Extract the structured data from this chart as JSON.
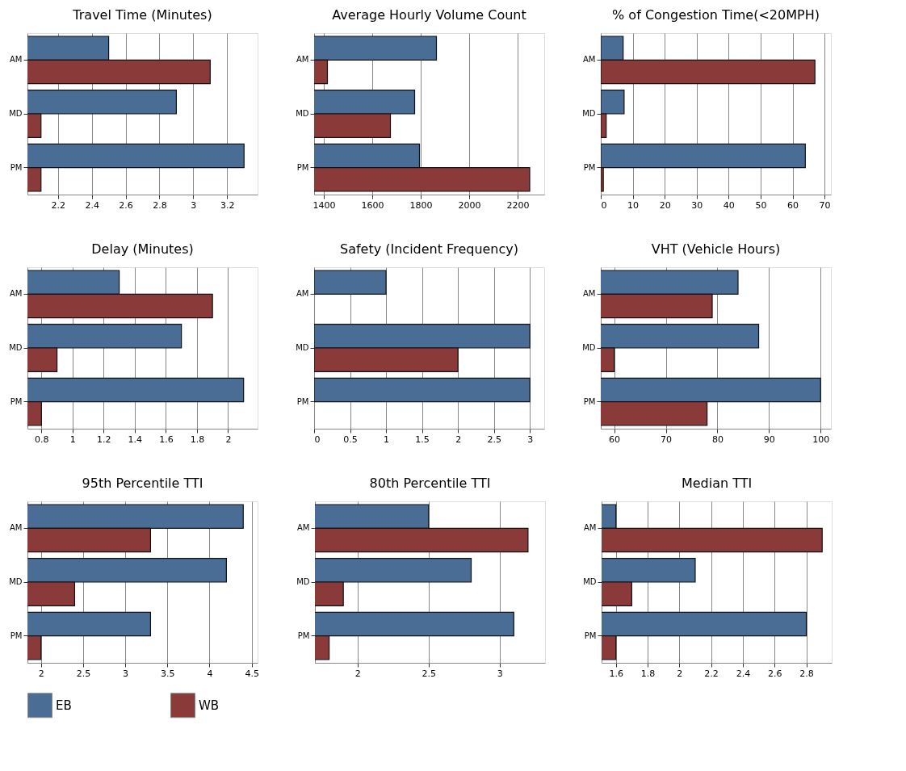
{
  "chart_data": [
    {
      "type": "bar",
      "orientation": "horizontal",
      "title": "Travel Time (Minutes)",
      "categories": [
        "AM",
        "MD",
        "PM"
      ],
      "xlim": [
        2.02,
        3.38
      ],
      "xticks": [
        2.2,
        2.4,
        2.6,
        2.8,
        3,
        3.2
      ],
      "grid": "x",
      "legend": "bottom",
      "series": [
        {
          "name": "EB",
          "color": "#4a6d96",
          "values": [
            2.5,
            2.9,
            3.3
          ]
        },
        {
          "name": "WB",
          "color": "#8b3a3a",
          "values": [
            3.1,
            2.1,
            2.1
          ]
        }
      ]
    },
    {
      "type": "bar",
      "orientation": "horizontal",
      "title": "Average Hourly Volume Count",
      "categories": [
        "AM",
        "MD",
        "PM"
      ],
      "xlim": [
        1360,
        2310
      ],
      "xticks": [
        1400,
        1600,
        1800,
        2000,
        2200
      ],
      "grid": "x",
      "legend": "bottom",
      "series": [
        {
          "name": "EB",
          "color": "#4a6d96",
          "values": [
            1865,
            1775,
            1795
          ]
        },
        {
          "name": "WB",
          "color": "#8b3a3a",
          "values": [
            1415,
            1675,
            2250
          ]
        }
      ]
    },
    {
      "type": "bar",
      "orientation": "horizontal",
      "title": "% of Congestion Time(<20MPH)",
      "categories": [
        "AM",
        "MD",
        "PM"
      ],
      "xlim": [
        0,
        72
      ],
      "xticks": [
        0,
        10,
        20,
        30,
        40,
        50,
        60,
        70
      ],
      "grid": "x",
      "legend": "bottom",
      "series": [
        {
          "name": "EB",
          "color": "#4a6d96",
          "values": [
            7,
            7.3,
            64
          ]
        },
        {
          "name": "WB",
          "color": "#8b3a3a",
          "values": [
            67,
            1.7,
            0.8
          ]
        }
      ]
    },
    {
      "type": "bar",
      "orientation": "horizontal",
      "title": "Delay (Minutes)",
      "categories": [
        "AM",
        "MD",
        "PM"
      ],
      "xlim": [
        0.71,
        2.19
      ],
      "xticks": [
        0.8,
        1,
        1.2,
        1.4,
        1.6,
        1.8,
        2
      ],
      "grid": "x",
      "legend": "bottom",
      "series": [
        {
          "name": "EB",
          "color": "#4a6d96",
          "values": [
            1.3,
            1.7,
            2.1
          ]
        },
        {
          "name": "WB",
          "color": "#8b3a3a",
          "values": [
            1.9,
            0.9,
            0.8
          ]
        }
      ]
    },
    {
      "type": "bar",
      "orientation": "horizontal",
      "title": "Safety (Incident Frequency)",
      "categories": [
        "AM",
        "MD",
        "PM"
      ],
      "xlim": [
        0,
        3.2
      ],
      "xticks": [
        0,
        0.5,
        1,
        1.5,
        2,
        2.5,
        3
      ],
      "grid": "x",
      "legend": "bottom",
      "series": [
        {
          "name": "EB",
          "color": "#4a6d96",
          "values": [
            1,
            3,
            3
          ]
        },
        {
          "name": "WB",
          "color": "#8b3a3a",
          "values": [
            null,
            2,
            null
          ]
        }
      ]
    },
    {
      "type": "bar",
      "orientation": "horizontal",
      "title": "VHT (Vehicle Hours)",
      "categories": [
        "AM",
        "MD",
        "PM"
      ],
      "xlim": [
        57.4,
        102
      ],
      "xticks": [
        60,
        70,
        80,
        90,
        100
      ],
      "grid": "x",
      "legend": "bottom",
      "series": [
        {
          "name": "EB",
          "color": "#4a6d96",
          "values": [
            84,
            88,
            100
          ]
        },
        {
          "name": "WB",
          "color": "#8b3a3a",
          "values": [
            79,
            60,
            78
          ]
        }
      ]
    },
    {
      "type": "bar",
      "orientation": "horizontal",
      "title": "95th Percentile TTI",
      "categories": [
        "AM",
        "MD",
        "PM"
      ],
      "xlim": [
        1.84,
        4.57
      ],
      "xticks": [
        2,
        2.5,
        3,
        3.5,
        4,
        4.5
      ],
      "grid": "x",
      "legend": "bottom",
      "series": [
        {
          "name": "EB",
          "color": "#4a6d96",
          "values": [
            4.4,
            4.2,
            3.3
          ]
        },
        {
          "name": "WB",
          "color": "#8b3a3a",
          "values": [
            3.3,
            2.4,
            2.0
          ]
        }
      ]
    },
    {
      "type": "bar",
      "orientation": "horizontal",
      "title": "80th Percentile TTI",
      "categories": [
        "AM",
        "MD",
        "PM"
      ],
      "xlim": [
        1.7,
        3.32
      ],
      "xticks": [
        2,
        2.5,
        3
      ],
      "grid": "x",
      "legend": "bottom",
      "series": [
        {
          "name": "EB",
          "color": "#4a6d96",
          "values": [
            2.5,
            2.8,
            3.1
          ]
        },
        {
          "name": "WB",
          "color": "#8b3a3a",
          "values": [
            3.2,
            1.9,
            1.8
          ]
        }
      ]
    },
    {
      "type": "bar",
      "orientation": "horizontal",
      "title": "Median TTI",
      "categories": [
        "AM",
        "MD",
        "PM"
      ],
      "xlim": [
        1.51,
        2.96
      ],
      "xticks": [
        1.6,
        1.8,
        2,
        2.2,
        2.4,
        2.6,
        2.8
      ],
      "grid": "x",
      "legend": "bottom",
      "series": [
        {
          "name": "EB",
          "color": "#4a6d96",
          "values": [
            1.6,
            2.1,
            2.8
          ]
        },
        {
          "name": "WB",
          "color": "#8b3a3a",
          "values": [
            2.9,
            1.7,
            1.6
          ]
        }
      ]
    }
  ]
}
